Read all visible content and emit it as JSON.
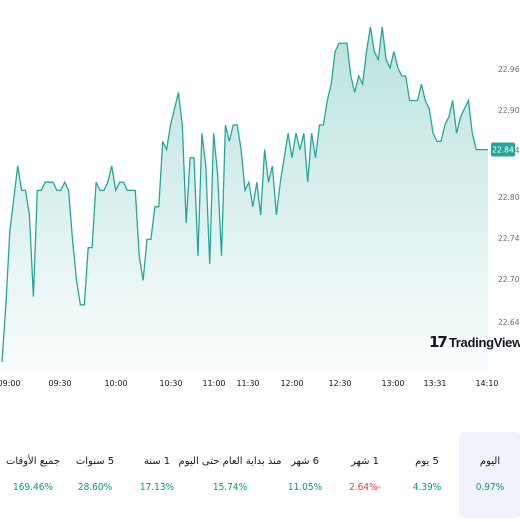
{
  "chart_data": {
    "type": "area",
    "x_labels": [
      "09:00",
      "09:30",
      "10:00",
      "10:30",
      "11:00",
      "11:30",
      "12:00",
      "12:30",
      "13:00",
      "13:31",
      "14:10"
    ],
    "y_ticks": [
      "22.96",
      "22.90",
      "22.84",
      "22.80",
      "22.74",
      "22.70",
      "22.64"
    ],
    "last_price": "22.84",
    "ylim": [
      22.6,
      23.0
    ],
    "series": [
      {
        "values": [
          22.58,
          22.65,
          22.74,
          22.78,
          22.82,
          22.79,
          22.79,
          22.76,
          22.66,
          22.79,
          22.79,
          22.8,
          22.8,
          22.8,
          22.79,
          22.79,
          22.8,
          22.79,
          22.73,
          22.68,
          22.65,
          22.65,
          22.72,
          22.72,
          22.8,
          22.79,
          22.79,
          22.8,
          22.82,
          22.79,
          22.8,
          22.8,
          22.79,
          22.79,
          22.79,
          22.71,
          22.68,
          22.73,
          22.73,
          22.77,
          22.77,
          22.85,
          22.84,
          22.87,
          22.89,
          22.91,
          22.87,
          22.75,
          22.83,
          22.83,
          22.71,
          22.86,
          22.82,
          22.7,
          22.86,
          22.81,
          22.71,
          22.87,
          22.85,
          22.87,
          22.87,
          22.84,
          22.79,
          22.8,
          22.77,
          22.8,
          22.76,
          22.84,
          22.8,
          22.82,
          22.76,
          22.8,
          22.83,
          22.86,
          22.83,
          22.86,
          22.84,
          22.86,
          22.8,
          22.86,
          22.83,
          22.87,
          22.87,
          22.9,
          22.92,
          22.96,
          22.97,
          22.97,
          22.97,
          22.93,
          22.91,
          22.93,
          22.92,
          22.96,
          22.99,
          22.96,
          22.95,
          22.99,
          22.95,
          22.94,
          22.96,
          22.94,
          22.93,
          22.93,
          22.9,
          22.9,
          22.9,
          22.92,
          22.9,
          22.89,
          22.86,
          22.85,
          22.85,
          22.87,
          22.88,
          22.9,
          22.86,
          22.88,
          22.89,
          22.9,
          22.86,
          22.84,
          22.84,
          22.84,
          22.84
        ]
      }
    ]
  },
  "logo": {
    "mark": "17",
    "text": "TradingView"
  },
  "periods": [
    {
      "label": "اليوم",
      "value": "0.97%",
      "sign": "positive",
      "active": true
    },
    {
      "label": "5 يوم",
      "value": "4.39%",
      "sign": "positive",
      "active": false
    },
    {
      "label": "1 شهر",
      "value": "-2.64%",
      "sign": "negative",
      "active": false
    },
    {
      "label": "6 شهر",
      "value": "11.05%",
      "sign": "positive",
      "active": false
    },
    {
      "label": "منذ بداية العام حتى اليوم",
      "value": "15.74%",
      "sign": "positive",
      "active": false
    },
    {
      "label": "1 سنة",
      "value": "17.13%",
      "sign": "positive",
      "active": false
    },
    {
      "label": "5 سنوات",
      "value": "28.60%",
      "sign": "positive",
      "active": false
    },
    {
      "label": "جميع الأوقات",
      "value": "169.46%",
      "sign": "positive",
      "active": false
    }
  ],
  "colors": {
    "line": "#26a69a",
    "fill_top": "#26a69a",
    "positive": "#089981",
    "negative": "#f23645",
    "badge": "#26a69a"
  }
}
